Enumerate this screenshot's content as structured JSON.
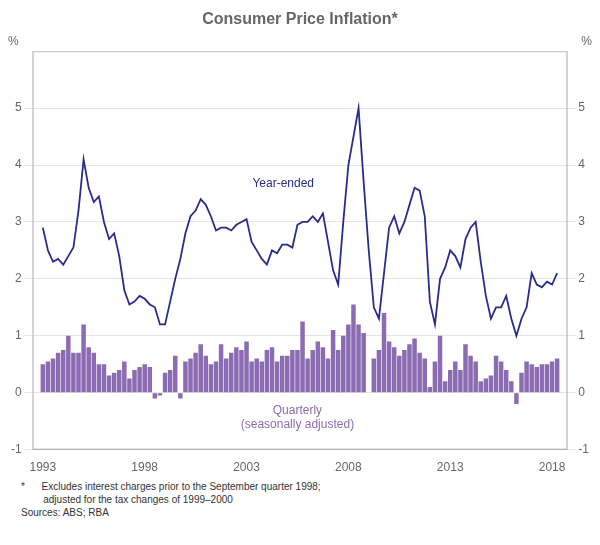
{
  "chart_data": {
    "type": "bar",
    "title": "Consumer Price Inflation*",
    "ylabel": "%",
    "y2label": "%",
    "notes": [
      "*      Excludes interest charges prior to the September quarter 1998;",
      "        adjusted for the tax changes of 1999–2000",
      "Sources: ABS; RBA"
    ],
    "x": [
      1993,
      1993.25,
      1993.5,
      1993.75,
      1994,
      1994.25,
      1994.5,
      1994.75,
      1995,
      1995.25,
      1995.5,
      1995.75,
      1996,
      1996.25,
      1996.5,
      1996.75,
      1997,
      1997.25,
      1997.5,
      1997.75,
      1998,
      1998.25,
      1998.5,
      1998.75,
      1999,
      1999.25,
      1999.5,
      1999.75,
      2000,
      2000.25,
      2000.5,
      2000.75,
      2001,
      2001.25,
      2001.5,
      2001.75,
      2002,
      2002.25,
      2002.5,
      2002.75,
      2003,
      2003.25,
      2003.5,
      2003.75,
      2004,
      2004.25,
      2004.5,
      2004.75,
      2005,
      2005.25,
      2005.5,
      2005.75,
      2006,
      2006.25,
      2006.5,
      2006.75,
      2007,
      2007.25,
      2007.5,
      2007.75,
      2008,
      2008.25,
      2008.5,
      2008.75,
      2009,
      2009.25,
      2009.5,
      2009.75,
      2010,
      2010.25,
      2010.5,
      2010.75,
      2011,
      2011.25,
      2011.5,
      2011.75,
      2012,
      2012.25,
      2012.5,
      2012.75,
      2013,
      2013.25,
      2013.5,
      2013.75,
      2014,
      2014.25,
      2014.5,
      2014.75,
      2015,
      2015.25,
      2015.5,
      2015.75,
      2016,
      2016.25,
      2016.5,
      2016.75,
      2017,
      2017.25,
      2017.5,
      2017.75,
      2018,
      2018.25
    ],
    "series": [
      {
        "name": "Quarterly\n(seasonally adjusted)",
        "type": "bar",
        "color": "#8B6BB1",
        "values": [
          0.5,
          0.55,
          0.6,
          0.7,
          0.75,
          1.0,
          0.7,
          0.7,
          1.2,
          0.8,
          0.7,
          0.5,
          0.5,
          0.3,
          0.35,
          0.4,
          0.55,
          0.25,
          0.4,
          0.45,
          0.5,
          0.45,
          -0.1,
          -0.05,
          0.35,
          0.4,
          0.65,
          -0.1,
          0.55,
          0.6,
          0.7,
          0.85,
          0.65,
          0.5,
          0.55,
          0.85,
          0.6,
          0.7,
          0.8,
          0.75,
          0.9,
          0.55,
          0.6,
          0.55,
          0.75,
          0.8,
          0.55,
          0.65,
          0.65,
          0.75,
          0.75,
          1.25,
          0.6,
          0.75,
          0.9,
          0.8,
          0.6,
          1.1,
          0.75,
          1.0,
          1.2,
          1.55,
          1.2,
          1.05,
          0.0,
          0.6,
          0.75,
          1.4,
          0.9,
          0.8,
          0.65,
          0.75,
          0.85,
          0.95,
          0.7,
          0.6,
          0.1,
          0.55,
          1.0,
          0.2,
          0.4,
          0.55,
          0.4,
          0.85,
          0.65,
          0.55,
          0.2,
          0.25,
          0.3,
          0.65,
          0.55,
          0.4,
          0.2,
          -0.2,
          0.35,
          0.55,
          0.5,
          0.45,
          0.5,
          0.5,
          0.55,
          0.6
        ]
      },
      {
        "name": "Year-ended",
        "type": "line",
        "color": "#2B2B8C",
        "values": [
          2.9,
          2.5,
          2.3,
          2.35,
          2.25,
          2.4,
          2.55,
          3.2,
          4.1,
          3.6,
          3.35,
          3.45,
          3.0,
          2.7,
          2.8,
          2.4,
          1.8,
          1.55,
          1.6,
          1.7,
          1.65,
          1.55,
          1.5,
          1.2,
          1.2,
          1.6,
          2.0,
          2.35,
          2.8,
          3.1,
          3.2,
          3.4,
          3.3,
          3.1,
          2.85,
          2.9,
          2.9,
          2.85,
          2.95,
          3.0,
          3.05,
          2.65,
          2.5,
          2.35,
          2.25,
          2.5,
          2.45,
          2.6,
          2.6,
          2.55,
          2.95,
          3.0,
          3.0,
          3.1,
          3.0,
          3.15,
          2.65,
          2.15,
          1.9,
          3.0,
          4.0,
          4.5,
          5.0,
          3.7,
          2.5,
          1.5,
          1.3,
          2.1,
          2.9,
          3.1,
          2.8,
          3.0,
          3.3,
          3.6,
          3.55,
          3.1,
          1.6,
          1.2,
          2.0,
          2.2,
          2.5,
          2.4,
          2.2,
          2.7,
          2.9,
          3.0,
          2.3,
          1.7,
          1.3,
          1.5,
          1.5,
          1.7,
          1.3,
          1.0,
          1.3,
          1.5,
          2.1,
          1.9,
          1.85,
          1.95,
          1.9,
          2.1
        ]
      }
    ],
    "xlim": [
      1992.5,
      2018.75
    ],
    "xticks": [
      1993,
      1998,
      2003,
      2008,
      2013,
      2018
    ],
    "ylim": [
      -1,
      6
    ],
    "yticks": [
      -1,
      0,
      1,
      2,
      3,
      4,
      5
    ],
    "y2lim": [
      -1,
      6
    ],
    "y2ticks": [
      -1,
      0,
      1,
      2,
      3,
      4,
      5
    ],
    "grid": true
  }
}
